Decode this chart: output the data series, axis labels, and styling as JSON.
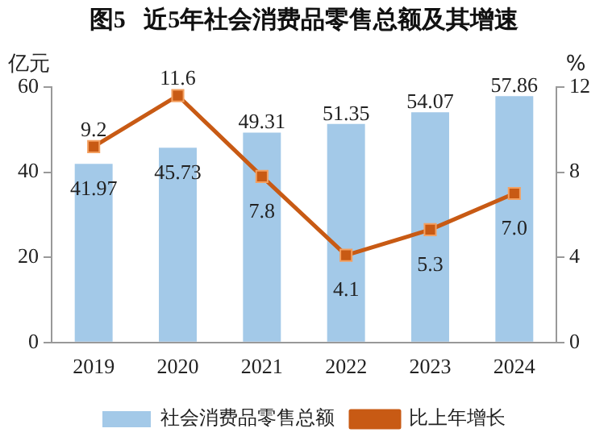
{
  "chart_data": {
    "type": "bar",
    "title": "图5   近5年社会消费品零售总额及其增速",
    "ylabel": "亿元",
    "y2label": "%",
    "categories": [
      "2019",
      "2020",
      "2021",
      "2022",
      "2023",
      "2024"
    ],
    "series": [
      {
        "name": "社会消费品零售总额",
        "color": "#a3c9e8",
        "values": [
          41.97,
          45.73,
          49.31,
          51.35,
          54.07,
          57.86
        ]
      },
      {
        "name": "比上年增长",
        "type": "line",
        "axis": "y2",
        "color": "#c85a14",
        "marker": "square",
        "values": [
          9.2,
          11.6,
          7.8,
          4.1,
          5.3,
          7.0
        ],
        "value_labels": [
          "9.2",
          "11.6",
          "7.8",
          "4.1",
          "5.3",
          "7.0"
        ]
      }
    ],
    "ylim": [
      0,
      60
    ],
    "yticks": [
      0,
      20,
      40,
      60
    ],
    "y2lim": [
      0,
      12
    ],
    "y2ticks": [
      0,
      4,
      8,
      12
    ],
    "data_labels": true,
    "grid": false,
    "legend": "bottom"
  }
}
